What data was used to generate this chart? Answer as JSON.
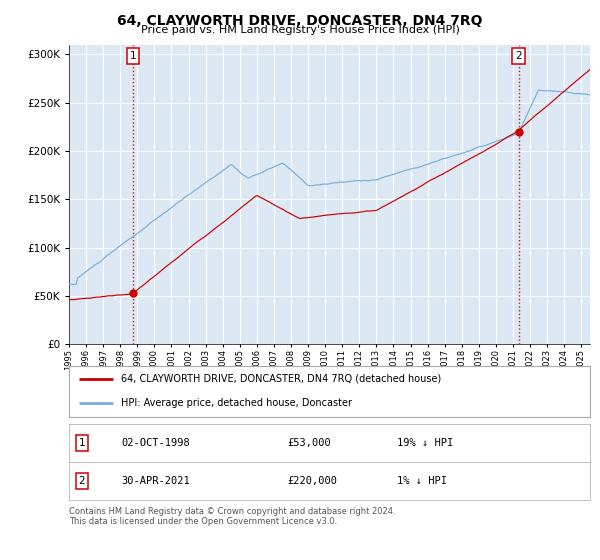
{
  "title": "64, CLAYWORTH DRIVE, DONCASTER, DN4 7RQ",
  "subtitle": "Price paid vs. HM Land Registry's House Price Index (HPI)",
  "bg_color": "#dce9f5",
  "fig_bg_color": "#ffffff",
  "grid_color": "#ffffff",
  "red_line_color": "#cc0000",
  "blue_line_color": "#7aaed6",
  "purchase1_date_num": 1998.75,
  "purchase1_price": 53000,
  "purchase2_date_num": 2021.33,
  "purchase2_price": 220000,
  "xmin": 1995.0,
  "xmax": 2025.5,
  "ymin": 0,
  "ymax": 310000,
  "legend_label_red": "64, CLAYWORTH DRIVE, DONCASTER, DN4 7RQ (detached house)",
  "legend_label_blue": "HPI: Average price, detached house, Doncaster",
  "table_row1": [
    "1",
    "02-OCT-1998",
    "£53,000",
    "19% ↓ HPI"
  ],
  "table_row2": [
    "2",
    "30-APR-2021",
    "£220,000",
    "1% ↓ HPI"
  ],
  "footer": "Contains HM Land Registry data © Crown copyright and database right 2024.\nThis data is licensed under the Open Government Licence v3.0.",
  "yticks": [
    0,
    50000,
    100000,
    150000,
    200000,
    250000,
    300000
  ]
}
